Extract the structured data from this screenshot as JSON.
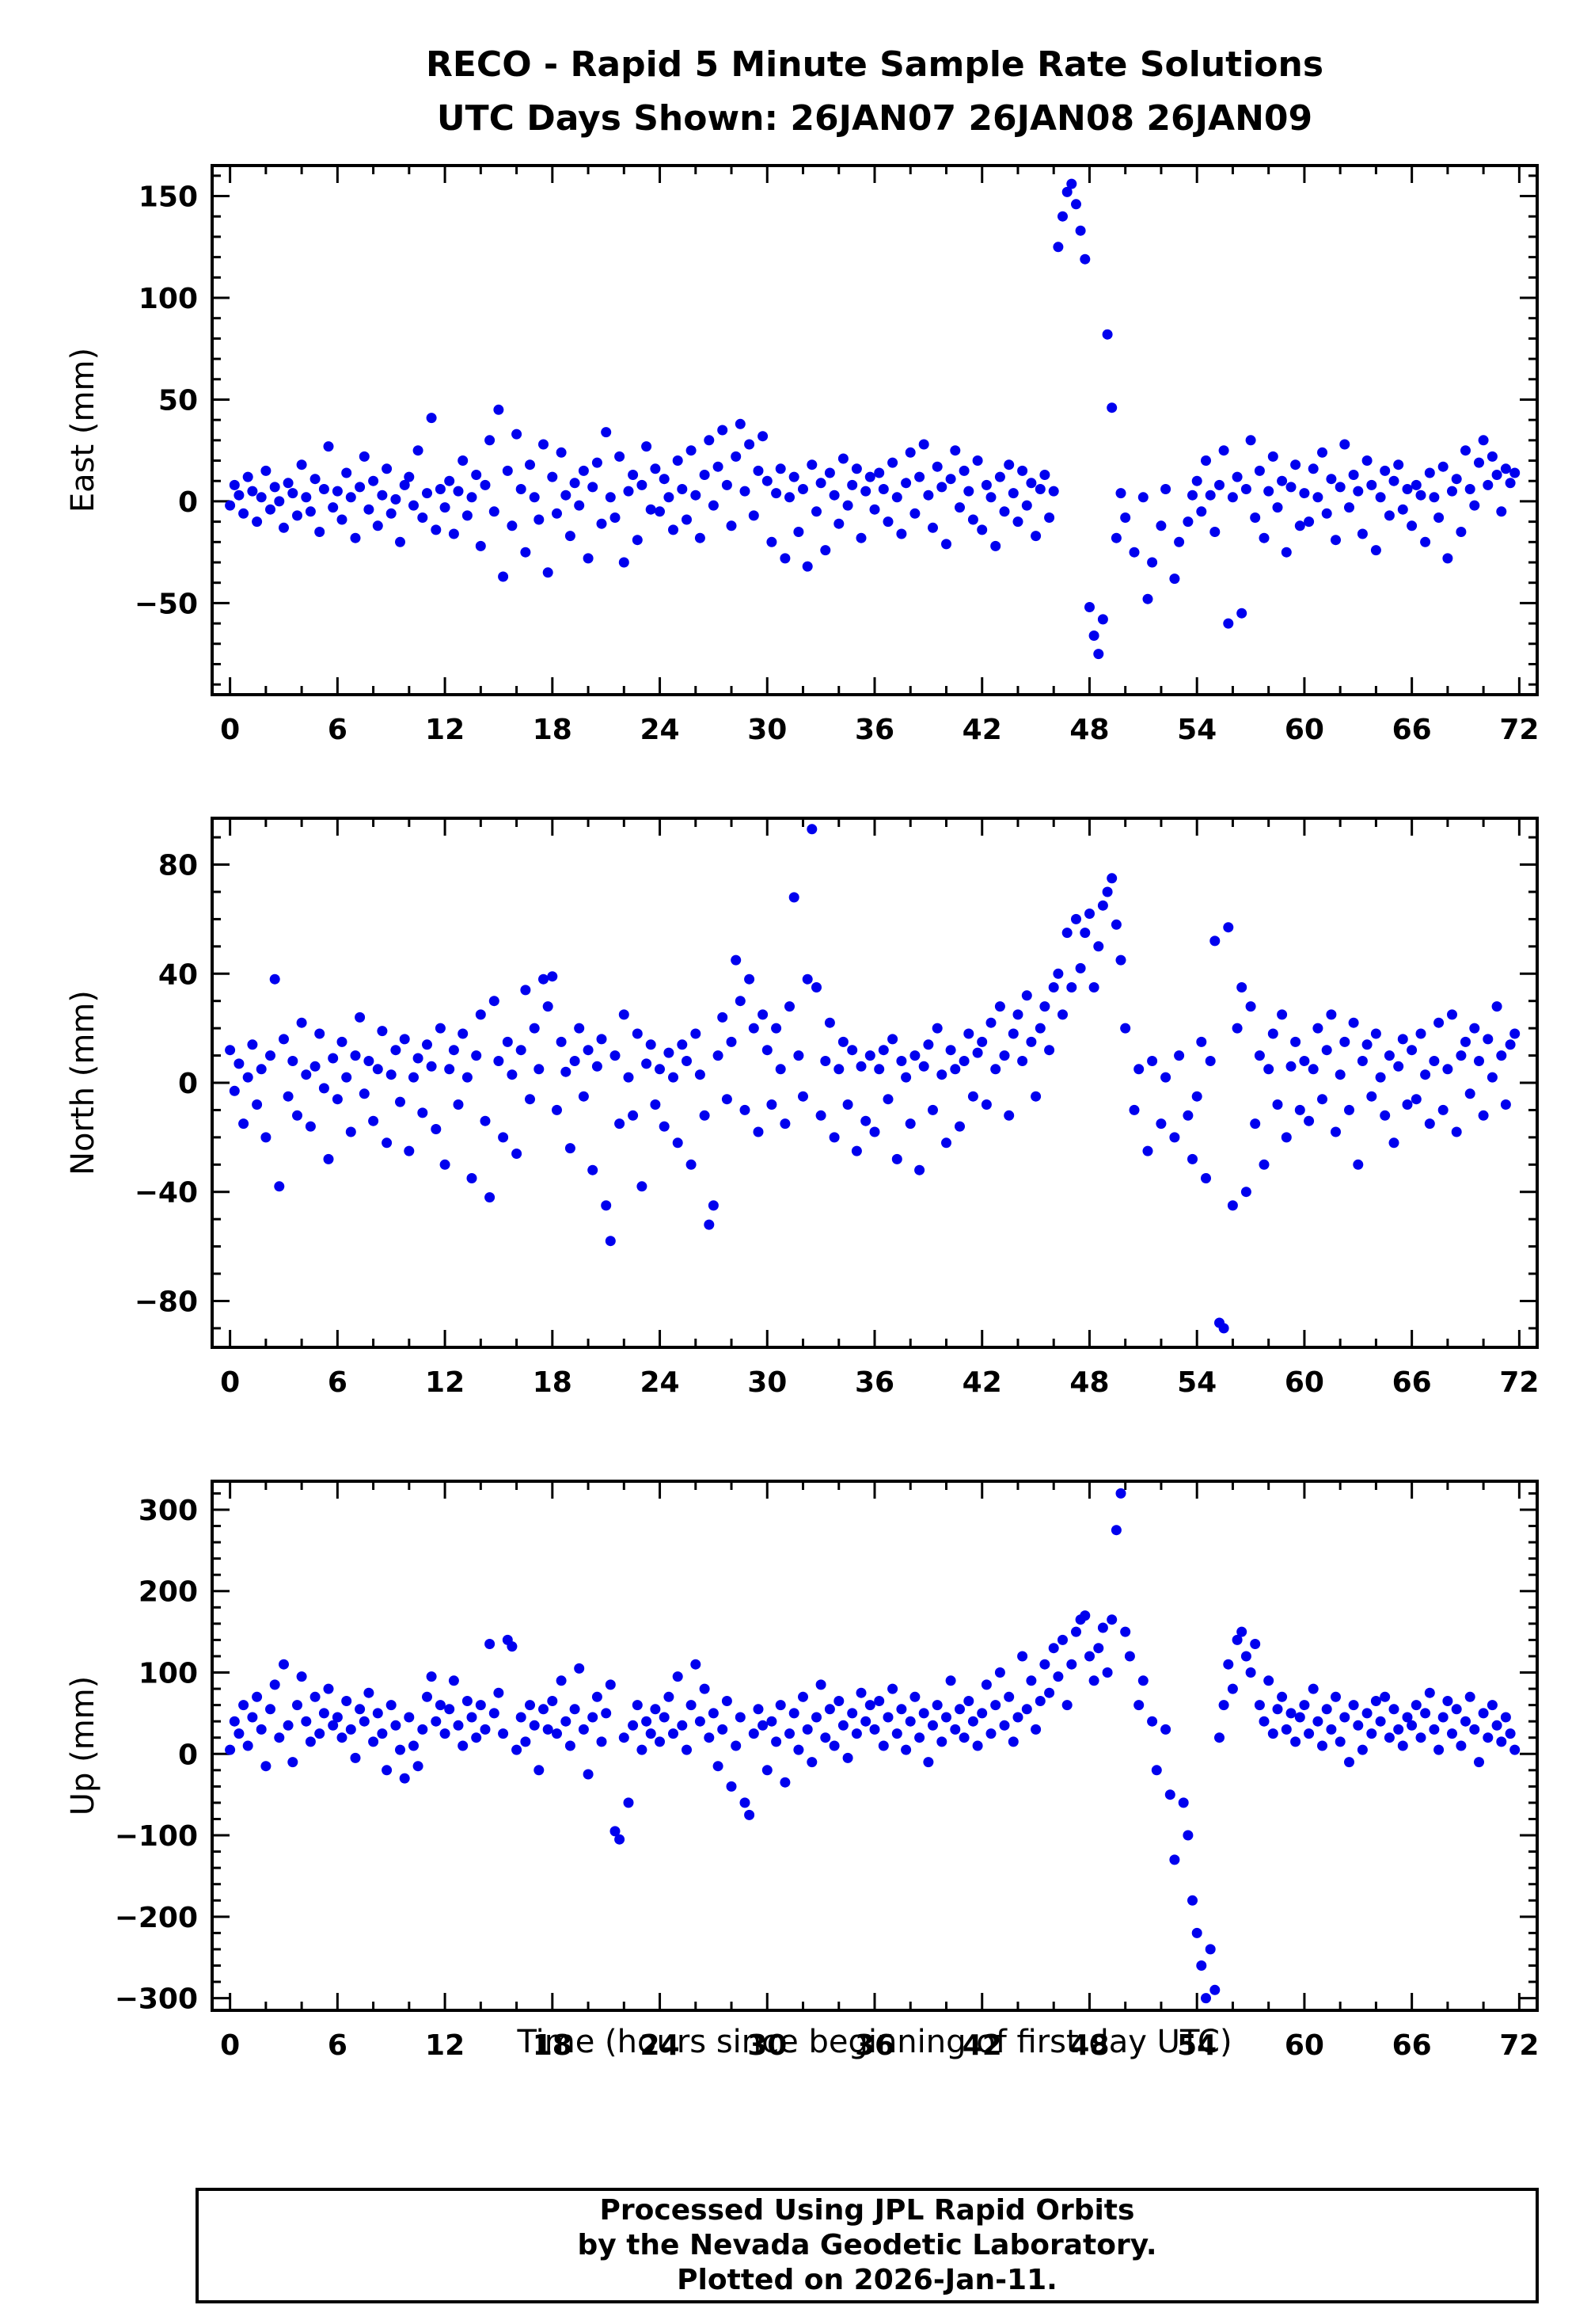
{
  "chart_data": {
    "type": "scatter",
    "title_line1": "RECO - Rapid 5 Minute Sample Rate Solutions",
    "title_line2": "UTC Days Shown:  26JAN07 26JAN08 26JAN09",
    "xlabel": "Time (hours since beginning of first day UTC)",
    "marker_color": "#0000EE",
    "axis_color": "#000000",
    "grid": false,
    "legend": "none",
    "x_start": 0,
    "x_step": 0.25,
    "xlim": [
      -1,
      73
    ],
    "xticks": [
      0,
      6,
      12,
      18,
      24,
      30,
      36,
      42,
      48,
      54,
      60,
      66,
      72
    ],
    "x_minor_step": 2,
    "panels": [
      {
        "name": "east",
        "ylabel": "East (mm)",
        "ylim": [
          -95,
          165
        ],
        "yticks": [
          -50,
          0,
          50,
          100,
          150
        ],
        "y_minor_step": 10,
        "values": [
          -2,
          8,
          3,
          -6,
          12,
          5,
          -10,
          2,
          15,
          -4,
          7,
          0,
          -13,
          9,
          4,
          -7,
          18,
          2,
          -5,
          11,
          -15,
          6,
          27,
          -3,
          5,
          -9,
          14,
          2,
          -18,
          7,
          22,
          -4,
          10,
          -12,
          3,
          16,
          -6,
          1,
          -20,
          8,
          12,
          -2,
          25,
          -8,
          4,
          41,
          -14,
          6,
          -3,
          10,
          -16,
          5,
          20,
          -7,
          2,
          13,
          -22,
          8,
          30,
          -5,
          45,
          -37,
          15,
          -12,
          33,
          6,
          -25,
          18,
          2,
          -9,
          28,
          -35,
          12,
          -6,
          24,
          3,
          -17,
          9,
          -2,
          15,
          -28,
          7,
          19,
          -11,
          34,
          2,
          -8,
          22,
          -30,
          5,
          13,
          -19,
          8,
          27,
          -4,
          16,
          -5,
          11,
          2,
          -14,
          20,
          6,
          -9,
          25,
          3,
          -18,
          13,
          30,
          -2,
          17,
          35,
          8,
          -12,
          22,
          38,
          5,
          28,
          -7,
          15,
          32,
          10,
          -20,
          4,
          16,
          -28,
          2,
          12,
          -15,
          6,
          -32,
          18,
          -5,
          9,
          -24,
          14,
          3,
          -11,
          21,
          -2,
          8,
          16,
          -18,
          5,
          12,
          -4,
          14,
          6,
          -10,
          19,
          2,
          -16,
          9,
          24,
          -6,
          12,
          28,
          3,
          -13,
          17,
          7,
          -21,
          11,
          25,
          -3,
          15,
          5,
          -9,
          20,
          -14,
          8,
          2,
          -22,
          12,
          -5,
          18,
          4,
          -10,
          15,
          -2,
          9,
          -17,
          6,
          13,
          -8,
          5,
          125,
          140,
          152,
          156,
          146,
          133,
          119,
          -52,
          -66,
          -75,
          -58,
          82,
          46,
          -18,
          4,
          -8,
          null,
          -25,
          null,
          2,
          -48,
          -30,
          null,
          -12,
          6,
          null,
          -38,
          -20,
          null,
          -10,
          3,
          10,
          -5,
          20,
          3,
          -15,
          8,
          25,
          -60,
          2,
          12,
          -55,
          6,
          30,
          -8,
          15,
          -18,
          5,
          22,
          -3,
          10,
          -25,
          7,
          18,
          -12,
          4,
          -10,
          16,
          2,
          24,
          -6,
          11,
          -19,
          7,
          28,
          -3,
          13,
          5,
          -16,
          20,
          8,
          -24,
          2,
          15,
          -7,
          10,
          18,
          -4,
          6,
          -12,
          8,
          3,
          -20,
          14,
          2,
          -8,
          17,
          -28,
          5,
          11,
          -15,
          25,
          6,
          -2,
          19,
          30,
          8,
          22,
          13,
          -5,
          16,
          9,
          14
        ]
      },
      {
        "name": "north",
        "ylabel": "North (mm)",
        "ylim": [
          -97,
          97
        ],
        "yticks": [
          -80,
          -40,
          0,
          40,
          80
        ],
        "y_minor_step": 10,
        "values": [
          12,
          -3,
          7,
          -15,
          2,
          14,
          -8,
          5,
          -20,
          10,
          38,
          -38,
          16,
          -5,
          8,
          -12,
          22,
          3,
          -16,
          6,
          18,
          -2,
          -28,
          9,
          -6,
          15,
          2,
          -18,
          10,
          24,
          -4,
          8,
          -14,
          5,
          19,
          -22,
          3,
          12,
          -7,
          16,
          -25,
          2,
          9,
          -11,
          14,
          6,
          -17,
          20,
          -30,
          5,
          12,
          -8,
          18,
          2,
          -35,
          10,
          25,
          -14,
          -42,
          30,
          8,
          -20,
          15,
          3,
          -26,
          12,
          34,
          -6,
          20,
          5,
          38,
          28,
          39,
          -10,
          15,
          4,
          -24,
          8,
          20,
          -5,
          12,
          -32,
          6,
          16,
          -45,
          -58,
          10,
          -15,
          25,
          2,
          -12,
          18,
          -38,
          7,
          14,
          -8,
          5,
          -16,
          11,
          2,
          -22,
          14,
          8,
          -30,
          18,
          3,
          -12,
          -52,
          -45,
          10,
          24,
          -6,
          15,
          45,
          30,
          -10,
          38,
          20,
          -18,
          25,
          12,
          -8,
          20,
          5,
          -15,
          28,
          68,
          10,
          -5,
          38,
          93,
          35,
          -12,
          8,
          22,
          -20,
          5,
          15,
          -8,
          12,
          -25,
          6,
          -14,
          10,
          -18,
          5,
          12,
          -6,
          16,
          -28,
          8,
          2,
          -15,
          10,
          -32,
          6,
          14,
          -10,
          20,
          3,
          -22,
          12,
          5,
          -16,
          8,
          18,
          -5,
          11,
          15,
          -8,
          22,
          5,
          28,
          10,
          -12,
          18,
          25,
          8,
          32,
          15,
          -5,
          20,
          28,
          12,
          35,
          40,
          25,
          55,
          35,
          60,
          42,
          55,
          62,
          35,
          50,
          65,
          70,
          75,
          58,
          45,
          20,
          null,
          -10,
          5,
          null,
          -25,
          8,
          null,
          -15,
          2,
          null,
          -20,
          10,
          null,
          -12,
          -28,
          -5,
          15,
          -35,
          8,
          52,
          -88,
          -90,
          57,
          -45,
          20,
          35,
          -40,
          28,
          -15,
          10,
          -30,
          5,
          18,
          -8,
          25,
          -20,
          6,
          15,
          -10,
          8,
          -14,
          5,
          20,
          -6,
          12,
          25,
          -18,
          3,
          15,
          -10,
          22,
          -30,
          8,
          14,
          -5,
          18,
          2,
          -12,
          10,
          -22,
          6,
          16,
          -8,
          12,
          -6,
          18,
          3,
          -15,
          8,
          22,
          -10,
          5,
          25,
          -18,
          10,
          15,
          -4,
          20,
          8,
          -12,
          16,
          2,
          28,
          10,
          -8,
          14,
          18
        ]
      },
      {
        "name": "up",
        "ylabel": "Up (mm)",
        "ylim": [
          -315,
          335
        ],
        "yticks": [
          -300,
          -200,
          -100,
          0,
          100,
          200,
          300
        ],
        "y_minor_step": 20,
        "values": [
          5,
          40,
          25,
          60,
          10,
          45,
          70,
          30,
          -15,
          55,
          85,
          20,
          110,
          35,
          -10,
          60,
          95,
          40,
          15,
          70,
          25,
          50,
          80,
          35,
          45,
          20,
          65,
          30,
          -5,
          55,
          40,
          75,
          15,
          50,
          25,
          -20,
          60,
          35,
          5,
          -30,
          45,
          10,
          -15,
          30,
          70,
          95,
          40,
          60,
          25,
          55,
          90,
          35,
          10,
          65,
          45,
          20,
          60,
          30,
          135,
          50,
          75,
          25,
          140,
          132,
          5,
          45,
          15,
          60,
          35,
          -20,
          55,
          30,
          65,
          25,
          90,
          40,
          10,
          55,
          105,
          30,
          -25,
          45,
          70,
          15,
          50,
          85,
          -95,
          -105,
          20,
          -60,
          35,
          60,
          5,
          40,
          25,
          55,
          15,
          45,
          70,
          25,
          95,
          35,
          5,
          60,
          110,
          40,
          80,
          20,
          50,
          -15,
          30,
          65,
          -40,
          10,
          45,
          -60,
          -75,
          25,
          55,
          35,
          -20,
          40,
          15,
          60,
          -35,
          25,
          50,
          5,
          70,
          30,
          -10,
          45,
          85,
          20,
          55,
          10,
          65,
          35,
          -5,
          50,
          25,
          75,
          40,
          60,
          30,
          65,
          10,
          45,
          80,
          25,
          55,
          5,
          40,
          70,
          20,
          50,
          -10,
          35,
          60,
          15,
          45,
          90,
          30,
          55,
          20,
          65,
          40,
          10,
          50,
          85,
          25,
          60,
          100,
          35,
          70,
          15,
          45,
          120,
          55,
          90,
          30,
          65,
          110,
          75,
          130,
          95,
          140,
          60,
          110,
          150,
          165,
          170,
          120,
          90,
          130,
          155,
          100,
          165,
          275,
          320,
          150,
          120,
          null,
          60,
          90,
          null,
          40,
          -20,
          null,
          30,
          -50,
          -130,
          null,
          -60,
          -100,
          -180,
          -220,
          -260,
          -300,
          -240,
          -290,
          20,
          60,
          110,
          80,
          140,
          150,
          120,
          100,
          135,
          60,
          40,
          90,
          25,
          55,
          70,
          30,
          50,
          15,
          45,
          60,
          25,
          80,
          40,
          10,
          55,
          30,
          70,
          15,
          45,
          -10,
          60,
          35,
          5,
          50,
          25,
          65,
          40,
          70,
          20,
          55,
          30,
          10,
          45,
          35,
          60,
          20,
          50,
          75,
          30,
          5,
          45,
          65,
          25,
          55,
          10,
          40,
          70,
          30,
          -10,
          50,
          20,
          60,
          35,
          15,
          45,
          25,
          5
        ]
      }
    ]
  },
  "footer": {
    "line1": "Processed Using JPL Rapid Orbits",
    "line2": "by the Nevada Geodetic Laboratory.",
    "line3": "Plotted on 2026-Jan-11."
  }
}
